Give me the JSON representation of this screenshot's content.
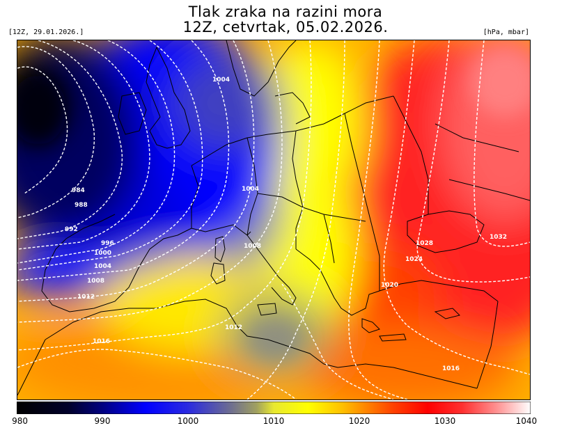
{
  "title_line1": "Tlak zraka na razini mora",
  "title_line2": "12Z, cetvrtak, 05.02.2026.",
  "run_label": "[12Z, 29.01.2026.]",
  "units_label": "[hPa, mbar]",
  "colorbar": {
    "min": 980,
    "max": 1040,
    "ticks": [
      "980",
      "990",
      "1000",
      "1010",
      "1020",
      "1030",
      "1040"
    ],
    "stops": [
      {
        "value": 980,
        "color": "#000000"
      },
      {
        "value": 986,
        "color": "#00002a"
      },
      {
        "value": 990,
        "color": "#000080"
      },
      {
        "value": 995,
        "color": "#0000ff"
      },
      {
        "value": 1000,
        "color": "#2a2ae0"
      },
      {
        "value": 1005,
        "color": "#6e6e90"
      },
      {
        "value": 1008,
        "color": "#a0a060"
      },
      {
        "value": 1010,
        "color": "#e8e830"
      },
      {
        "value": 1014,
        "color": "#ffff00"
      },
      {
        "value": 1018,
        "color": "#ffc000"
      },
      {
        "value": 1021,
        "color": "#ff8000"
      },
      {
        "value": 1024,
        "color": "#ff4000"
      },
      {
        "value": 1028,
        "color": "#ff0000"
      },
      {
        "value": 1032,
        "color": "#ff3030"
      },
      {
        "value": 1036,
        "color": "#ff9090"
      },
      {
        "value": 1040,
        "color": "#ffffff"
      }
    ]
  },
  "isobar_labels": [
    "984",
    "988",
    "992",
    "996",
    "1000",
    "1004",
    "1004",
    "1004",
    "1008",
    "1008",
    "1012",
    "1012",
    "1016",
    "1016",
    "1020",
    "1024",
    "1028",
    "1032"
  ]
}
